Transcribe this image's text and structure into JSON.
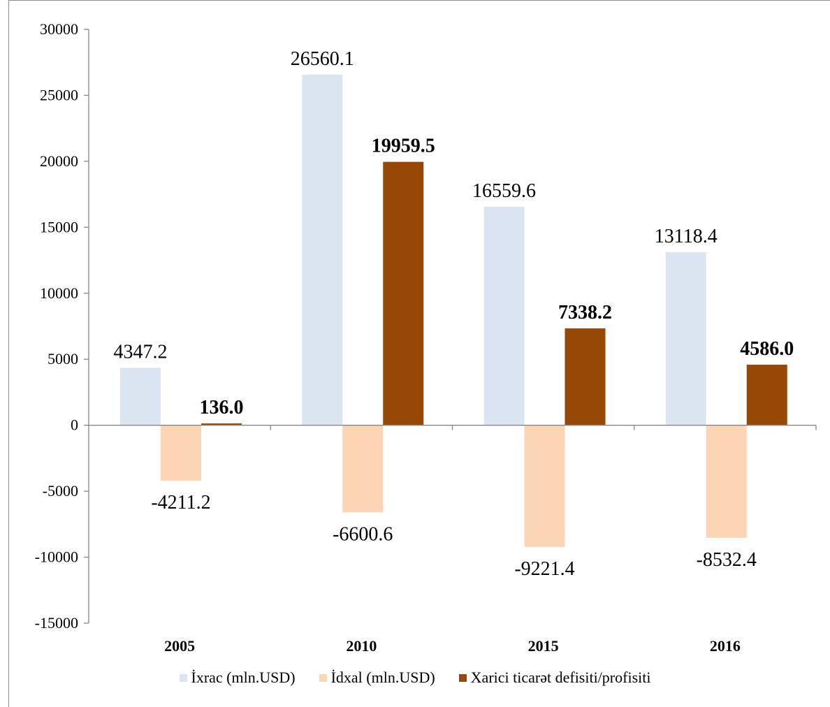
{
  "chart_data": {
    "type": "bar",
    "title": "",
    "xlabel": "",
    "ylabel": "",
    "categories": [
      "2005",
      "2010",
      "2015",
      "2016"
    ],
    "series": [
      {
        "name": "İxrac (mln.USD)",
        "values": [
          4347.2,
          26560.1,
          16559.6,
          13118.4
        ],
        "value_labels": [
          "4347.2",
          "26560.1",
          "16559.6",
          "13118.4"
        ],
        "color": "#dbe5f1",
        "label_bold": false
      },
      {
        "name": "İdxal (mln.USD)",
        "values": [
          -4211.2,
          -6600.6,
          -9221.4,
          -8532.4
        ],
        "value_labels": [
          "-4211.2",
          "-6600.6",
          "-9221.4",
          "-8532.4"
        ],
        "color": "#fcd5b5",
        "label_bold": false
      },
      {
        "name": "Xarici ticarət defisiti/profisiti",
        "values": [
          136.0,
          19959.5,
          7338.2,
          4586.0
        ],
        "value_labels": [
          "136.0",
          "19959.5",
          "7338.2",
          "4586.0"
        ],
        "color": "#974706",
        "label_bold": true
      }
    ],
    "ylim": [
      -15000,
      30000
    ],
    "yticks": [
      30000,
      25000,
      20000,
      15000,
      10000,
      5000,
      0,
      -5000,
      -10000,
      -15000
    ],
    "grid": false,
    "legend": "bottom",
    "axis_color": "#868686"
  }
}
